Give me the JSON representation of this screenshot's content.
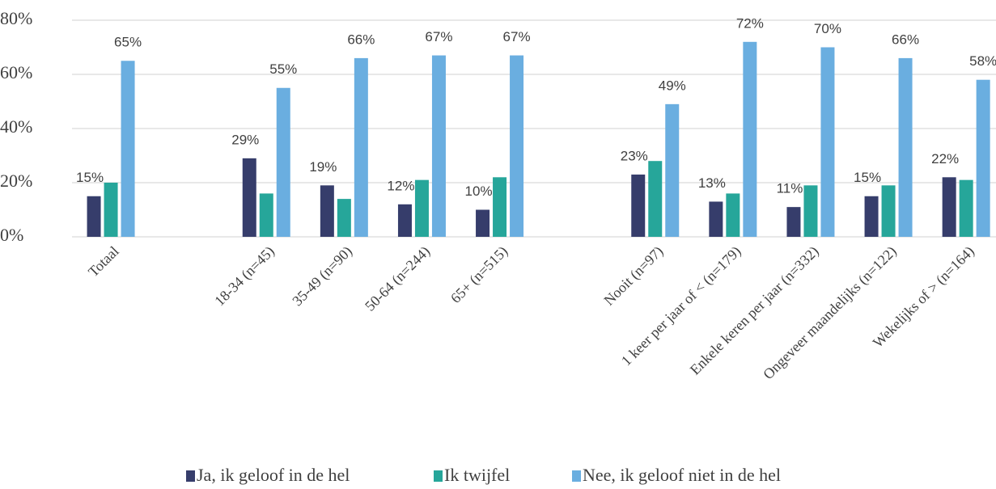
{
  "chart_data": {
    "type": "bar",
    "categories": [
      "Totaal",
      null,
      "18-34 (n=45)",
      "35-49 (n=90)",
      "50-64 (n=244)",
      "65+ (n=515)",
      null,
      "Nooit (n=97)",
      "1 keer per jaar of < (n=179)",
      "Enkele keren per jaar (n=332)",
      "Ongeveer maandelijks (n=122)",
      "Wekelijks of > (n=164)"
    ],
    "series": [
      {
        "name": "Ja, ik geloof in de hel",
        "color": "#363d6b",
        "values": [
          15,
          null,
          29,
          19,
          12,
          10,
          null,
          23,
          13,
          11,
          15,
          22
        ],
        "value_labels": [
          "15%",
          null,
          "29%",
          "19%",
          "12%",
          "10%",
          null,
          "23%",
          "13%",
          "11%",
          "15%",
          "22%"
        ]
      },
      {
        "name": "Ik twijfel",
        "color": "#26a69a",
        "values": [
          20,
          null,
          16,
          14,
          21,
          22,
          null,
          28,
          16,
          19,
          19,
          21
        ]
      },
      {
        "name": "Nee, ik geloof niet in de hel",
        "color": "#6aaee0",
        "values": [
          65,
          null,
          55,
          66,
          67,
          67,
          null,
          49,
          72,
          70,
          66,
          58
        ],
        "value_labels": [
          "65%",
          null,
          "55%",
          "66%",
          "67%",
          "67%",
          null,
          "49%",
          "72%",
          "70%",
          "66%",
          "58%"
        ]
      }
    ],
    "ylim": [
      0,
      80
    ],
    "yticks": [
      {
        "value": 0,
        "label": "0%"
      },
      {
        "value": 20,
        "label": "20%"
      },
      {
        "value": 40,
        "label": "40%"
      },
      {
        "value": 60,
        "label": "60%"
      },
      {
        "value": 80,
        "label": "80%"
      }
    ],
    "grid": true
  }
}
